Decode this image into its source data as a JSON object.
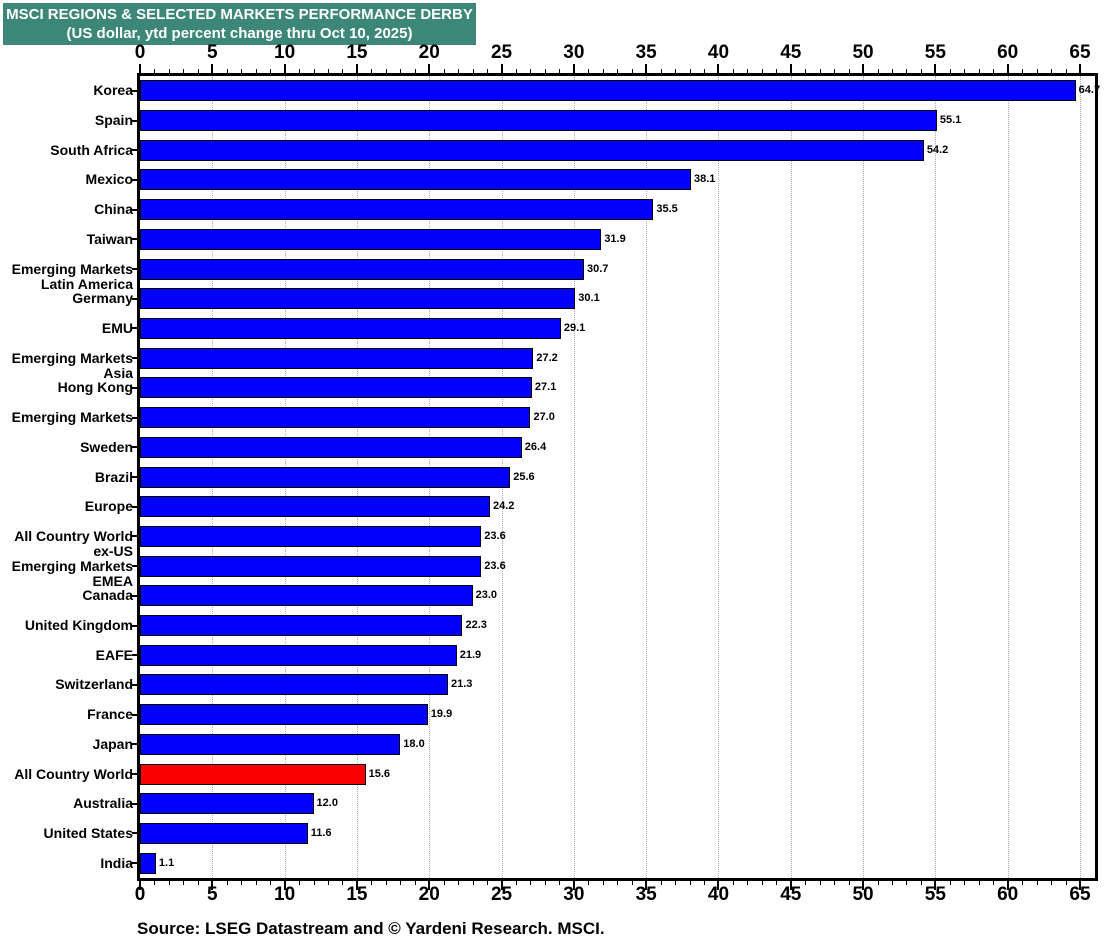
{
  "title": {
    "line1": "MSCI REGIONS & SELECTED MARKETS PERFORMANCE DERBY",
    "line2": "(US dollar, ytd percent change thru Oct 10, 2025)",
    "bg_color": "#3D8779",
    "text_color": "#FFFFFF"
  },
  "source": "Source: LSEG Datastream and © Yardeni Research. MSCI.",
  "chart_data": {
    "type": "bar",
    "orientation": "horizontal",
    "title": "MSCI REGIONS & SELECTED MARKETS PERFORMANCE DERBY",
    "subtitle": "(US dollar, ytd percent change thru Oct 10, 2025)",
    "xlabel": "",
    "ylabel": "",
    "axis": {
      "min": 0,
      "max": 65,
      "major_tick_step": 5,
      "minor_tick_step": 1,
      "tick_labels": [
        "0",
        "5",
        "10",
        "15",
        "20",
        "25",
        "30",
        "35",
        "40",
        "45",
        "50",
        "55",
        "60",
        "65"
      ],
      "label_positions": "top and bottom",
      "grid": "dotted vertical gridlines at major ticks"
    },
    "colors": {
      "bar_default": "#0000FB",
      "bar_highlight": "#FC0000",
      "bar_border": "#000000",
      "gridline": "#B0B0B0"
    },
    "legend": "none",
    "value_label_position": "outside end of bar",
    "bars": [
      {
        "label": [
          "Korea"
        ],
        "value": 64.7,
        "display": "64.7"
      },
      {
        "label": [
          "Spain"
        ],
        "value": 55.1,
        "display": "55.1"
      },
      {
        "label": [
          "South Africa"
        ],
        "value": 54.2,
        "display": "54.2"
      },
      {
        "label": [
          "Mexico"
        ],
        "value": 38.1,
        "display": "38.1"
      },
      {
        "label": [
          "China"
        ],
        "value": 35.5,
        "display": "35.5"
      },
      {
        "label": [
          "Taiwan"
        ],
        "value": 31.9,
        "display": "31.9"
      },
      {
        "label": [
          "Emerging Markets",
          "Latin America"
        ],
        "value": 30.7,
        "display": "30.7"
      },
      {
        "label": [
          "Germany"
        ],
        "value": 30.1,
        "display": "30.1"
      },
      {
        "label": [
          "EMU"
        ],
        "value": 29.1,
        "display": "29.1"
      },
      {
        "label": [
          "Emerging Markets",
          "Asia"
        ],
        "value": 27.2,
        "display": "27.2"
      },
      {
        "label": [
          "Hong Kong"
        ],
        "value": 27.1,
        "display": "27.1"
      },
      {
        "label": [
          "Emerging Markets"
        ],
        "value": 27.0,
        "display": "27.0"
      },
      {
        "label": [
          "Sweden"
        ],
        "value": 26.4,
        "display": "26.4"
      },
      {
        "label": [
          "Brazil"
        ],
        "value": 25.6,
        "display": "25.6"
      },
      {
        "label": [
          "Europe"
        ],
        "value": 24.2,
        "display": "24.2"
      },
      {
        "label": [
          "All Country World",
          "ex-US"
        ],
        "value": 23.6,
        "display": "23.6"
      },
      {
        "label": [
          "Emerging Markets",
          "EMEA"
        ],
        "value": 23.6,
        "display": "23.6"
      },
      {
        "label": [
          "Canada"
        ],
        "value": 23.0,
        "display": "23.0"
      },
      {
        "label": [
          "United Kingdom"
        ],
        "value": 22.3,
        "display": "22.3"
      },
      {
        "label": [
          "EAFE"
        ],
        "value": 21.9,
        "display": "21.9"
      },
      {
        "label": [
          "Switzerland"
        ],
        "value": 21.3,
        "display": "21.3"
      },
      {
        "label": [
          "France"
        ],
        "value": 19.9,
        "display": "19.9"
      },
      {
        "label": [
          "Japan"
        ],
        "value": 18.0,
        "display": "18.0"
      },
      {
        "label": [
          "All Country World"
        ],
        "value": 15.6,
        "display": "15.6",
        "highlight": true
      },
      {
        "label": [
          "Australia"
        ],
        "value": 12.0,
        "display": "12.0"
      },
      {
        "label": [
          "United States"
        ],
        "value": 11.6,
        "display": "11.6"
      },
      {
        "label": [
          "India"
        ],
        "value": 1.1,
        "display": "1.1"
      }
    ]
  }
}
